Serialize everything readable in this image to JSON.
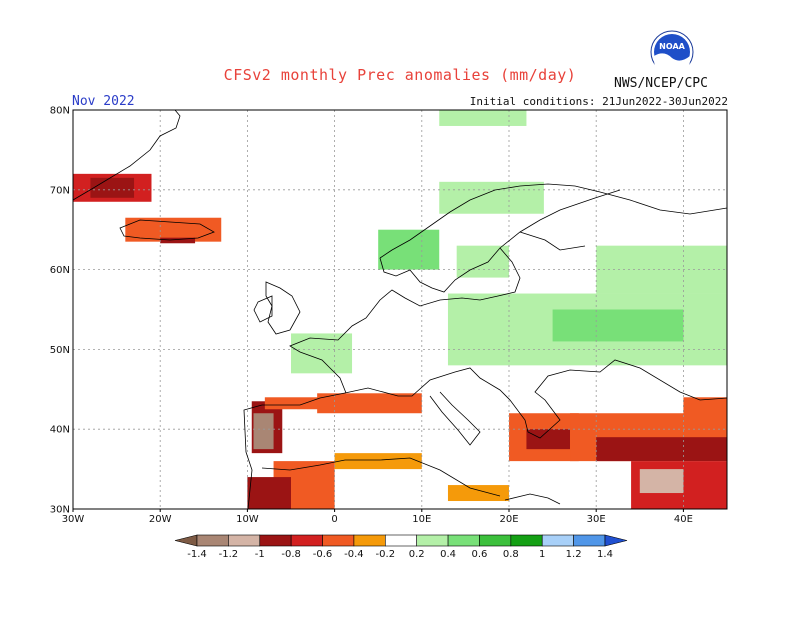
{
  "header": {
    "title": "CFSv2 monthly Prec anomalies (mm/day)",
    "month": "Nov 2022",
    "initial_conditions": "Initial conditions: 21Jun2022-30Jun2022",
    "organization": "NWS/NCEP/CPC",
    "logo_text": "NOAA",
    "logo_icon": "noaa-logo-icon"
  },
  "map": {
    "lon_range": [
      -30,
      45
    ],
    "lat_range": [
      30,
      80
    ],
    "lon_ticks": [
      {
        "value": -30,
        "label": "30W"
      },
      {
        "value": -20,
        "label": "20W"
      },
      {
        "value": -10,
        "label": "10W"
      },
      {
        "value": 0,
        "label": "0"
      },
      {
        "value": 10,
        "label": "10E"
      },
      {
        "value": 20,
        "label": "20E"
      },
      {
        "value": 30,
        "label": "30E"
      },
      {
        "value": 40,
        "label": "40E"
      }
    ],
    "lat_ticks": [
      {
        "value": 30,
        "label": "30N"
      },
      {
        "value": 40,
        "label": "40N"
      },
      {
        "value": 50,
        "label": "50N"
      },
      {
        "value": 60,
        "label": "60N"
      },
      {
        "value": 70,
        "label": "70N"
      },
      {
        "value": 80,
        "label": "80N"
      }
    ],
    "grid": true,
    "coastline_color": "#000000"
  },
  "colorbar": {
    "labels": [
      "-1.4",
      "-1.2",
      "-1",
      "-0.8",
      "-0.6",
      "-0.4",
      "-0.2",
      "0.2",
      "0.4",
      "0.6",
      "0.8",
      "1",
      "1.2",
      "1.4"
    ],
    "colors": [
      "#7d5a44",
      "#a98674",
      "#d4b4a6",
      "#9b1414",
      "#d22020",
      "#f05a23",
      "#f59a0a",
      "#ffffff",
      "#b4f0a8",
      "#78e078",
      "#3cc03c",
      "#14a014",
      "#a8d0f8",
      "#5096e8",
      "#2050d0"
    ]
  },
  "anomaly_regions": [
    {
      "name": "iceland",
      "lon": [
        -24,
        -13
      ],
      "lat": [
        63.5,
        66.5
      ],
      "value": -0.5
    },
    {
      "name": "iceland-south",
      "lon": [
        -20,
        -16
      ],
      "lat": [
        63.3,
        64
      ],
      "value": -0.8
    },
    {
      "name": "greenland-east",
      "lon": [
        -30,
        -21
      ],
      "lat": [
        68.5,
        72
      ],
      "value": -0.6
    },
    {
      "name": "greenland-east-core",
      "lon": [
        -28,
        -23
      ],
      "lat": [
        69,
        71.5
      ],
      "value": -0.9
    },
    {
      "name": "norway-coast",
      "lon": [
        5,
        12
      ],
      "lat": [
        60,
        65
      ],
      "value": 0.5
    },
    {
      "name": "norway-north",
      "lon": [
        12,
        24
      ],
      "lat": [
        67,
        71
      ],
      "value": 0.4
    },
    {
      "name": "sweden-finland",
      "lon": [
        14,
        20
      ],
      "lat": [
        59,
        63
      ],
      "value": 0.3
    },
    {
      "name": "eastern-europe",
      "lon": [
        13,
        45
      ],
      "lat": [
        48,
        57
      ],
      "value": 0.3
    },
    {
      "name": "belarus-russia",
      "lon": [
        25,
        40
      ],
      "lat": [
        51,
        55
      ],
      "value": 0.6
    },
    {
      "name": "russia-north",
      "lon": [
        30,
        45
      ],
      "lat": [
        57,
        63
      ],
      "value": 0.3
    },
    {
      "name": "barents-coast",
      "lon": [
        12,
        22
      ],
      "lat": [
        78,
        80
      ],
      "value": 0.4
    },
    {
      "name": "france-north",
      "lon": [
        -5,
        2
      ],
      "lat": [
        47,
        52
      ],
      "value": 0.3
    },
    {
      "name": "iberia-west",
      "lon": [
        -9.5,
        -6
      ],
      "lat": [
        37,
        43.5
      ],
      "value": -0.9
    },
    {
      "name": "iberia-west-core",
      "lon": [
        -9.3,
        -7
      ],
      "lat": [
        37.5,
        42
      ],
      "value": -1.3
    },
    {
      "name": "iberia-north",
      "lon": [
        -8,
        0
      ],
      "lat": [
        42.5,
        44
      ],
      "value": -0.4
    },
    {
      "name": "pyrenees-gulf",
      "lon": [
        -2,
        10
      ],
      "lat": [
        42,
        44.5
      ],
      "value": -0.5
    },
    {
      "name": "north-africa",
      "lon": [
        -7,
        0
      ],
      "lat": [
        30,
        36
      ],
      "value": -0.4
    },
    {
      "name": "morocco-atlantic",
      "lon": [
        -10,
        -5
      ],
      "lat": [
        30,
        34
      ],
      "value": -0.8
    },
    {
      "name": "algeria-coast",
      "lon": [
        0,
        10
      ],
      "lat": [
        35,
        37
      ],
      "value": -0.3
    },
    {
      "name": "greece-aegean",
      "lon": [
        20,
        28
      ],
      "lat": [
        36,
        42
      ],
      "value": -0.5
    },
    {
      "name": "aegean-core",
      "lon": [
        22,
        27
      ],
      "lat": [
        37.5,
        40
      ],
      "value": -0.9
    },
    {
      "name": "turkey",
      "lon": [
        27,
        45
      ],
      "lat": [
        36,
        42
      ],
      "value": -0.5
    },
    {
      "name": "turkey-south",
      "lon": [
        30,
        45
      ],
      "lat": [
        36,
        39
      ],
      "value": -0.9
    },
    {
      "name": "levant",
      "lon": [
        34,
        45
      ],
      "lat": [
        30,
        36
      ],
      "value": -0.6
    },
    {
      "name": "levant-core",
      "lon": [
        35,
        40
      ],
      "lat": [
        32,
        35
      ],
      "value": -1.0
    },
    {
      "name": "caspian-west",
      "lon": [
        40,
        45
      ],
      "lat": [
        40,
        44
      ],
      "value": -0.5
    },
    {
      "name": "libya-coast",
      "lon": [
        13,
        20
      ],
      "lat": [
        31,
        33
      ],
      "value": -0.3
    }
  ]
}
